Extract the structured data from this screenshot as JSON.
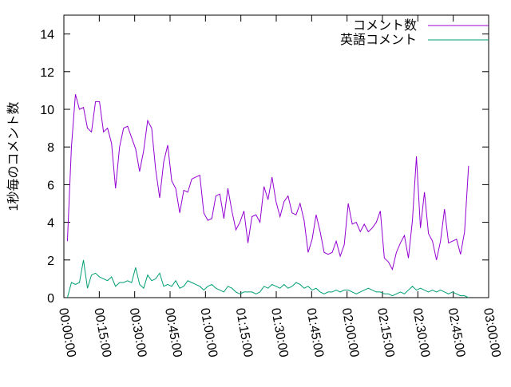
{
  "chart_data": {
    "type": "line",
    "y_label": "1秒毎のコメント数",
    "x": [
      1.5,
      3.2,
      4.9,
      6.6,
      8.3,
      10,
      11.7,
      13.4,
      15.1,
      16.8,
      18.5,
      20.2,
      21.9,
      23.6,
      25.3,
      27,
      28.7,
      30.4,
      32.1,
      33.8,
      35.5,
      37.2,
      38.9,
      40.6,
      42.3,
      44,
      45.7,
      47.4,
      49.1,
      50.8,
      52.5,
      54.2,
      55.9,
      57.6,
      59.3,
      61,
      62.7,
      64.4,
      66.1,
      67.8,
      69.5,
      71.2,
      72.9,
      74.6,
      76.3,
      78,
      79.7,
      81.4,
      83.1,
      84.8,
      86.5,
      88.2,
      89.9,
      91.6,
      93.3,
      95,
      96.7,
      98.4,
      100.1,
      101.8,
      103.5,
      105.2,
      106.9,
      108.6,
      110.3,
      112,
      113.7,
      115.4,
      117.1,
      118.8,
      120.5,
      122.2,
      123.9,
      125.6,
      127.3,
      129,
      130.7,
      132.4,
      134.1,
      135.8,
      137.5,
      139.2,
      140.9,
      142.6,
      144.3,
      146,
      147.7,
      149.4,
      151.1,
      152.8,
      154.5,
      156.2,
      157.9,
      159.6,
      161.3,
      163,
      164.7,
      166.4,
      168.1,
      169.8,
      171.5
    ],
    "series": [
      {
        "name": "コメント数",
        "color": "#9400d3",
        "values": [
          3.0,
          8.0,
          10.8,
          10.0,
          10.1,
          9.0,
          8.8,
          10.4,
          10.4,
          8.8,
          9.0,
          8.2,
          5.8,
          8.0,
          9.0,
          9.1,
          8.5,
          7.9,
          6.7,
          7.8,
          9.4,
          9.0,
          6.8,
          5.3,
          7.2,
          8.1,
          6.2,
          5.8,
          4.5,
          5.7,
          5.6,
          6.3,
          6.4,
          6.5,
          4.5,
          4.1,
          4.2,
          5.4,
          5.5,
          4.2,
          5.8,
          4.6,
          3.6,
          4.0,
          4.6,
          2.9,
          4.3,
          4.4,
          4.0,
          5.9,
          5.2,
          6.4,
          5.1,
          4.3,
          5.1,
          5.4,
          4.5,
          4.4,
          5.0,
          4.1,
          2.4,
          3.1,
          4.4,
          3.5,
          2.4,
          2.3,
          2.4,
          3.0,
          2.2,
          2.8,
          5.0,
          3.9,
          4.0,
          3.5,
          3.9,
          3.5,
          3.7,
          4.0,
          4.6,
          2.1,
          1.9,
          1.5,
          2.4,
          2.9,
          3.3,
          2.1,
          4.1,
          7.5,
          3.7,
          5.6,
          3.4,
          3.0,
          2.0,
          3.0,
          4.7,
          2.9,
          3.0,
          3.1,
          2.3,
          3.5,
          7.0
        ]
      },
      {
        "name": "英語コメント",
        "color": "#009e73",
        "values": [
          0.0,
          0.8,
          0.7,
          0.8,
          2.0,
          0.5,
          1.2,
          1.3,
          1.1,
          1.0,
          0.9,
          1.1,
          0.6,
          0.8,
          0.8,
          0.9,
          0.8,
          1.6,
          0.7,
          0.5,
          1.2,
          0.9,
          1.0,
          1.3,
          0.6,
          0.7,
          0.6,
          0.9,
          0.5,
          0.6,
          0.9,
          0.8,
          0.7,
          0.6,
          0.4,
          0.6,
          0.7,
          0.5,
          0.4,
          0.3,
          0.6,
          0.5,
          0.3,
          0.2,
          0.3,
          0.3,
          0.3,
          0.2,
          0.3,
          0.6,
          0.5,
          0.7,
          0.6,
          0.5,
          0.7,
          0.5,
          0.6,
          0.8,
          0.7,
          0.5,
          0.6,
          0.4,
          0.5,
          0.3,
          0.2,
          0.3,
          0.3,
          0.4,
          0.3,
          0.4,
          0.4,
          0.3,
          0.2,
          0.3,
          0.4,
          0.5,
          0.4,
          0.3,
          0.3,
          0.2,
          0.2,
          0.1,
          0.2,
          0.3,
          0.2,
          0.4,
          0.6,
          0.4,
          0.5,
          0.4,
          0.3,
          0.4,
          0.3,
          0.4,
          0.3,
          0.2,
          0.3,
          0.2,
          0.1,
          0.1,
          0.0
        ]
      }
    ],
    "xlim": [
      0,
      180
    ],
    "xticks": [
      {
        "value": 0,
        "label": "00:00:00"
      },
      {
        "value": 15,
        "label": "00:15:00"
      },
      {
        "value": 30,
        "label": "00:30:00"
      },
      {
        "value": 45,
        "label": "00:45:00"
      },
      {
        "value": 60,
        "label": "01:00:00"
      },
      {
        "value": 75,
        "label": "01:15:00"
      },
      {
        "value": 90,
        "label": "01:30:00"
      },
      {
        "value": 105,
        "label": "01:45:00"
      },
      {
        "value": 120,
        "label": "02:00:00"
      },
      {
        "value": 135,
        "label": "02:15:00"
      },
      {
        "value": 150,
        "label": "02:30:00"
      },
      {
        "value": 165,
        "label": "02:45:00"
      },
      {
        "value": 180,
        "label": "03:00:00"
      }
    ],
    "ylim": [
      0,
      15
    ],
    "yticks": [
      0,
      2,
      4,
      6,
      8,
      10,
      12,
      14
    ],
    "legend": "top-right"
  }
}
